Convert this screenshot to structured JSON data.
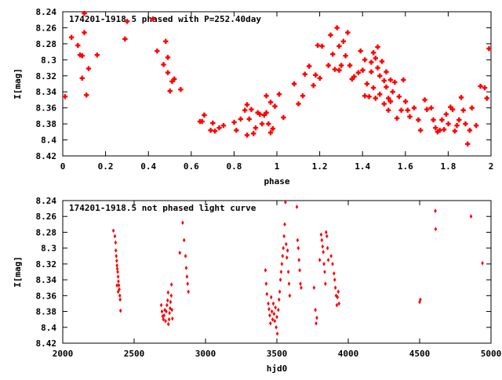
{
  "chart_data": [
    {
      "type": "scatter",
      "title": "174201-1918.5 phased with P=252.40day",
      "xlabel": "phase",
      "ylabel": "I[mag]",
      "xlim": [
        0,
        2
      ],
      "ylim": [
        8.24,
        8.42
      ],
      "y_inverted": true,
      "x_ticks": [
        0,
        0.2,
        0.4,
        0.6,
        0.8,
        1,
        1.2,
        1.4,
        1.6,
        1.8,
        2
      ],
      "x_tick_labels": [
        "0",
        "0.2",
        "0.4",
        "0.6",
        "0.8",
        "1",
        "1.2",
        "1.4",
        "1.6",
        "1.8",
        "2"
      ],
      "y_ticks": [
        8.24,
        8.26,
        8.28,
        8.3,
        8.32,
        8.34,
        8.36,
        8.38,
        8.4,
        8.42
      ],
      "y_tick_labels": [
        "8.24",
        "8.26",
        "8.28",
        "8.3",
        "8.32",
        "8.34",
        "8.36",
        "8.38",
        "8.4",
        "8.42"
      ],
      "grid": false,
      "marker_color": "#ff0000",
      "points": [
        [
          0.01,
          8.346
        ],
        [
          0.04,
          8.272
        ],
        [
          0.07,
          8.282
        ],
        [
          0.08,
          8.294
        ],
        [
          0.09,
          8.323
        ],
        [
          0.09,
          8.295
        ],
        [
          0.1,
          8.266
        ],
        [
          0.1,
          8.242
        ],
        [
          0.11,
          8.344
        ],
        [
          0.12,
          8.311
        ],
        [
          0.16,
          8.294
        ],
        [
          0.29,
          8.274
        ],
        [
          0.3,
          8.252
        ],
        [
          0.42,
          8.249
        ],
        [
          0.44,
          8.289
        ],
        [
          0.47,
          8.306
        ],
        [
          0.48,
          8.277
        ],
        [
          0.49,
          8.297
        ],
        [
          0.49,
          8.316
        ],
        [
          0.5,
          8.339
        ],
        [
          0.51,
          8.327
        ],
        [
          0.52,
          8.324
        ],
        [
          0.55,
          8.337
        ],
        [
          0.64,
          8.377
        ],
        [
          0.65,
          8.377
        ],
        [
          0.66,
          8.369
        ],
        [
          0.69,
          8.388
        ],
        [
          0.7,
          8.379
        ],
        [
          0.71,
          8.389
        ],
        [
          0.73,
          8.385
        ],
        [
          0.75,
          8.382
        ],
        [
          0.8,
          8.378
        ],
        [
          0.81,
          8.388
        ],
        [
          0.83,
          8.374
        ],
        [
          0.85,
          8.363
        ],
        [
          0.86,
          8.394
        ],
        [
          0.86,
          8.356
        ],
        [
          0.87,
          8.374
        ],
        [
          0.88,
          8.362
        ],
        [
          0.89,
          8.392
        ],
        [
          0.9,
          8.385
        ],
        [
          0.91,
          8.366
        ],
        [
          0.92,
          8.368
        ],
        [
          0.93,
          8.38
        ],
        [
          0.94,
          8.369
        ],
        [
          0.95,
          8.345
        ],
        [
          0.95,
          8.366
        ],
        [
          0.96,
          8.38
        ],
        [
          0.97,
          8.391
        ],
        [
          0.97,
          8.353
        ],
        [
          0.98,
          8.386
        ],
        [
          0.99,
          8.358
        ],
        [
          1.01,
          8.343
        ],
        [
          1.03,
          8.372
        ],
        [
          1.08,
          8.33
        ],
        [
          1.1,
          8.355
        ],
        [
          1.12,
          8.345
        ],
        [
          1.13,
          8.318
        ],
        [
          1.15,
          8.308
        ],
        [
          1.17,
          8.332
        ],
        [
          1.18,
          8.319
        ],
        [
          1.19,
          8.282
        ],
        [
          1.2,
          8.323
        ],
        [
          1.21,
          8.283
        ],
        [
          1.24,
          8.307
        ],
        [
          1.25,
          8.269
        ],
        [
          1.26,
          8.293
        ],
        [
          1.27,
          8.312
        ],
        [
          1.28,
          8.26
        ],
        [
          1.29,
          8.313
        ],
        [
          1.29,
          8.283
        ],
        [
          1.3,
          8.307
        ],
        [
          1.31,
          8.277
        ],
        [
          1.32,
          8.295
        ],
        [
          1.33,
          8.266
        ],
        [
          1.34,
          8.307
        ],
        [
          1.35,
          8.324
        ],
        [
          1.36,
          8.321
        ],
        [
          1.38,
          8.316
        ],
        [
          1.39,
          8.289
        ],
        [
          1.4,
          8.313
        ],
        [
          1.41,
          8.345
        ],
        [
          1.41,
          8.3
        ],
        [
          1.42,
          8.33
        ],
        [
          1.43,
          8.346
        ],
        [
          1.44,
          8.303
        ],
        [
          1.44,
          8.315
        ],
        [
          1.45,
          8.291
        ],
        [
          1.45,
          8.335
        ],
        [
          1.46,
          8.348
        ],
        [
          1.46,
          8.298
        ],
        [
          1.47,
          8.284
        ],
        [
          1.47,
          8.31
        ],
        [
          1.48,
          8.32
        ],
        [
          1.48,
          8.343
        ],
        [
          1.49,
          8.302
        ],
        [
          1.5,
          8.326
        ],
        [
          1.5,
          8.355
        ],
        [
          1.51,
          8.334
        ],
        [
          1.51,
          8.315
        ],
        [
          1.52,
          8.348
        ],
        [
          1.52,
          8.363
        ],
        [
          1.53,
          8.325
        ],
        [
          1.53,
          8.352
        ],
        [
          1.54,
          8.34
        ],
        [
          1.55,
          8.328
        ],
        [
          1.56,
          8.373
        ],
        [
          1.57,
          8.346
        ],
        [
          1.58,
          8.363
        ],
        [
          1.59,
          8.325
        ],
        [
          1.6,
          8.352
        ],
        [
          1.61,
          8.363
        ],
        [
          1.62,
          8.371
        ],
        [
          1.64,
          8.36
        ],
        [
          1.66,
          8.375
        ],
        [
          1.67,
          8.388
        ],
        [
          1.69,
          8.35
        ],
        [
          1.7,
          8.362
        ],
        [
          1.72,
          8.36
        ],
        [
          1.73,
          8.375
        ],
        [
          1.74,
          8.385
        ],
        [
          1.75,
          8.39
        ],
        [
          1.76,
          8.388
        ],
        [
          1.77,
          8.375
        ],
        [
          1.78,
          8.387
        ],
        [
          1.79,
          8.368
        ],
        [
          1.8,
          8.38
        ],
        [
          1.81,
          8.359
        ],
        [
          1.82,
          8.362
        ],
        [
          1.83,
          8.389
        ],
        [
          1.84,
          8.382
        ],
        [
          1.85,
          8.375
        ],
        [
          1.86,
          8.347
        ],
        [
          1.87,
          8.363
        ],
        [
          1.88,
          8.38
        ],
        [
          1.89,
          8.405
        ],
        [
          1.9,
          8.388
        ],
        [
          1.91,
          8.36
        ],
        [
          1.93,
          8.382
        ],
        [
          1.95,
          8.333
        ],
        [
          1.97,
          8.335
        ],
        [
          1.98,
          8.348
        ],
        [
          1.99,
          8.286
        ]
      ]
    },
    {
      "type": "scatter",
      "title": "174201-1918.5 not phased light curve",
      "xlabel": "hjd0",
      "ylabel": "I[mag]",
      "xlim": [
        2000,
        5000
      ],
      "ylim": [
        8.24,
        8.42
      ],
      "y_inverted": true,
      "x_ticks": [
        2000,
        2500,
        3000,
        3500,
        4000,
        4500,
        5000
      ],
      "x_tick_labels": [
        "2000",
        "2500",
        "3000",
        "3500",
        "4000",
        "4500",
        "5000"
      ],
      "y_ticks": [
        8.24,
        8.26,
        8.28,
        8.3,
        8.32,
        8.34,
        8.36,
        8.38,
        8.4,
        8.42
      ],
      "y_tick_labels": [
        "8.24",
        "8.26",
        "8.28",
        "8.3",
        "8.32",
        "8.34",
        "8.36",
        "8.38",
        "8.4",
        "8.42"
      ],
      "grid": false,
      "marker_color": "#ff0000",
      "points": [
        [
          2355,
          8.278
        ],
        [
          2365,
          8.285
        ],
        [
          2370,
          8.293
        ],
        [
          2372,
          8.303
        ],
        [
          2375,
          8.31
        ],
        [
          2378,
          8.316
        ],
        [
          2380,
          8.322
        ],
        [
          2382,
          8.326
        ],
        [
          2385,
          8.33
        ],
        [
          2388,
          8.336
        ],
        [
          2390,
          8.342
        ],
        [
          2393,
          8.347
        ],
        [
          2396,
          8.352
        ],
        [
          2400,
          8.36
        ],
        [
          2402,
          8.365
        ],
        [
          2405,
          8.379
        ],
        [
          2388,
          8.355
        ],
        [
          2380,
          8.347
        ],
        [
          2690,
          8.372
        ],
        [
          2695,
          8.38
        ],
        [
          2700,
          8.386
        ],
        [
          2705,
          8.39
        ],
        [
          2710,
          8.385
        ],
        [
          2715,
          8.378
        ],
        [
          2720,
          8.392
        ],
        [
          2725,
          8.38
        ],
        [
          2730,
          8.372
        ],
        [
          2735,
          8.366
        ],
        [
          2738,
          8.356
        ],
        [
          2740,
          8.396
        ],
        [
          2745,
          8.39
        ],
        [
          2748,
          8.382
        ],
        [
          2752,
          8.376
        ],
        [
          2755,
          8.368
        ],
        [
          2760,
          8.36
        ],
        [
          2762,
          8.346
        ],
        [
          2765,
          8.378
        ],
        [
          2768,
          8.389
        ],
        [
          2820,
          8.306
        ],
        [
          2840,
          8.268
        ],
        [
          2850,
          8.29
        ],
        [
          2860,
          8.31
        ],
        [
          2865,
          8.325
        ],
        [
          2870,
          8.336
        ],
        [
          2875,
          8.345
        ],
        [
          2880,
          8.355
        ],
        [
          3420,
          8.328
        ],
        [
          3425,
          8.345
        ],
        [
          3430,
          8.358
        ],
        [
          3440,
          8.37
        ],
        [
          3445,
          8.377
        ],
        [
          3450,
          8.385
        ],
        [
          3455,
          8.395
        ],
        [
          3460,
          8.362
        ],
        [
          3465,
          8.38
        ],
        [
          3470,
          8.39
        ],
        [
          3475,
          8.37
        ],
        [
          3480,
          8.383
        ],
        [
          3485,
          8.392
        ],
        [
          3490,
          8.375
        ],
        [
          3495,
          8.4
        ],
        [
          3500,
          8.387
        ],
        [
          3503,
          8.408
        ],
        [
          3510,
          8.378
        ],
        [
          3515,
          8.365
        ],
        [
          3520,
          8.355
        ],
        [
          3525,
          8.34
        ],
        [
          3530,
          8.33
        ],
        [
          3535,
          8.32
        ],
        [
          3540,
          8.31
        ],
        [
          3545,
          8.3
        ],
        [
          3550,
          8.285
        ],
        [
          3555,
          8.27
        ],
        [
          3560,
          8.242
        ],
        [
          3565,
          8.295
        ],
        [
          3570,
          8.312
        ],
        [
          3575,
          8.303
        ],
        [
          3580,
          8.33
        ],
        [
          3585,
          8.345
        ],
        [
          3590,
          8.36
        ],
        [
          3640,
          8.248
        ],
        [
          3645,
          8.29
        ],
        [
          3650,
          8.3
        ],
        [
          3655,
          8.315
        ],
        [
          3660,
          8.328
        ],
        [
          3665,
          8.345
        ],
        [
          3670,
          8.35
        ],
        [
          3760,
          8.35
        ],
        [
          3770,
          8.378
        ],
        [
          3775,
          8.395
        ],
        [
          3780,
          8.388
        ],
        [
          3800,
          8.315
        ],
        [
          3810,
          8.283
        ],
        [
          3815,
          8.29
        ],
        [
          3820,
          8.298
        ],
        [
          3825,
          8.305
        ],
        [
          3830,
          8.32
        ],
        [
          3835,
          8.33
        ],
        [
          3840,
          8.345
        ],
        [
          3845,
          8.28
        ],
        [
          3850,
          8.285
        ],
        [
          3855,
          8.3
        ],
        [
          3860,
          8.315
        ],
        [
          3880,
          8.31
        ],
        [
          3890,
          8.32
        ],
        [
          3900,
          8.332
        ],
        [
          3905,
          8.34
        ],
        [
          3910,
          8.35
        ],
        [
          3915,
          8.36
        ],
        [
          3920,
          8.372
        ],
        [
          3925,
          8.362
        ],
        [
          3930,
          8.355
        ],
        [
          3935,
          8.37
        ],
        [
          4500,
          8.368
        ],
        [
          4505,
          8.365
        ],
        [
          4610,
          8.253
        ],
        [
          4612,
          8.276
        ],
        [
          4860,
          8.26
        ],
        [
          4940,
          8.319
        ]
      ]
    }
  ]
}
